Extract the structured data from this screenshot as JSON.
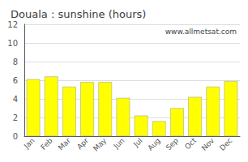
{
  "chart_data": {
    "type": "bar",
    "title": "Douala : sunshine (hours)",
    "categories": [
      "Jan",
      "Feb",
      "Mar",
      "Apr",
      "May",
      "Jun",
      "Jul",
      "Aug",
      "Sep",
      "Oct",
      "Nov",
      "Dec"
    ],
    "values": [
      6.1,
      6.4,
      5.3,
      5.8,
      5.8,
      4.1,
      2.2,
      1.6,
      3.0,
      4.2,
      5.3,
      5.9
    ],
    "color": "#ffff00",
    "ylim": [
      0,
      12
    ],
    "yticks": [
      0,
      2,
      4,
      6,
      8,
      10,
      12
    ],
    "grid": true,
    "annotation": "www.allmetsat.com"
  }
}
